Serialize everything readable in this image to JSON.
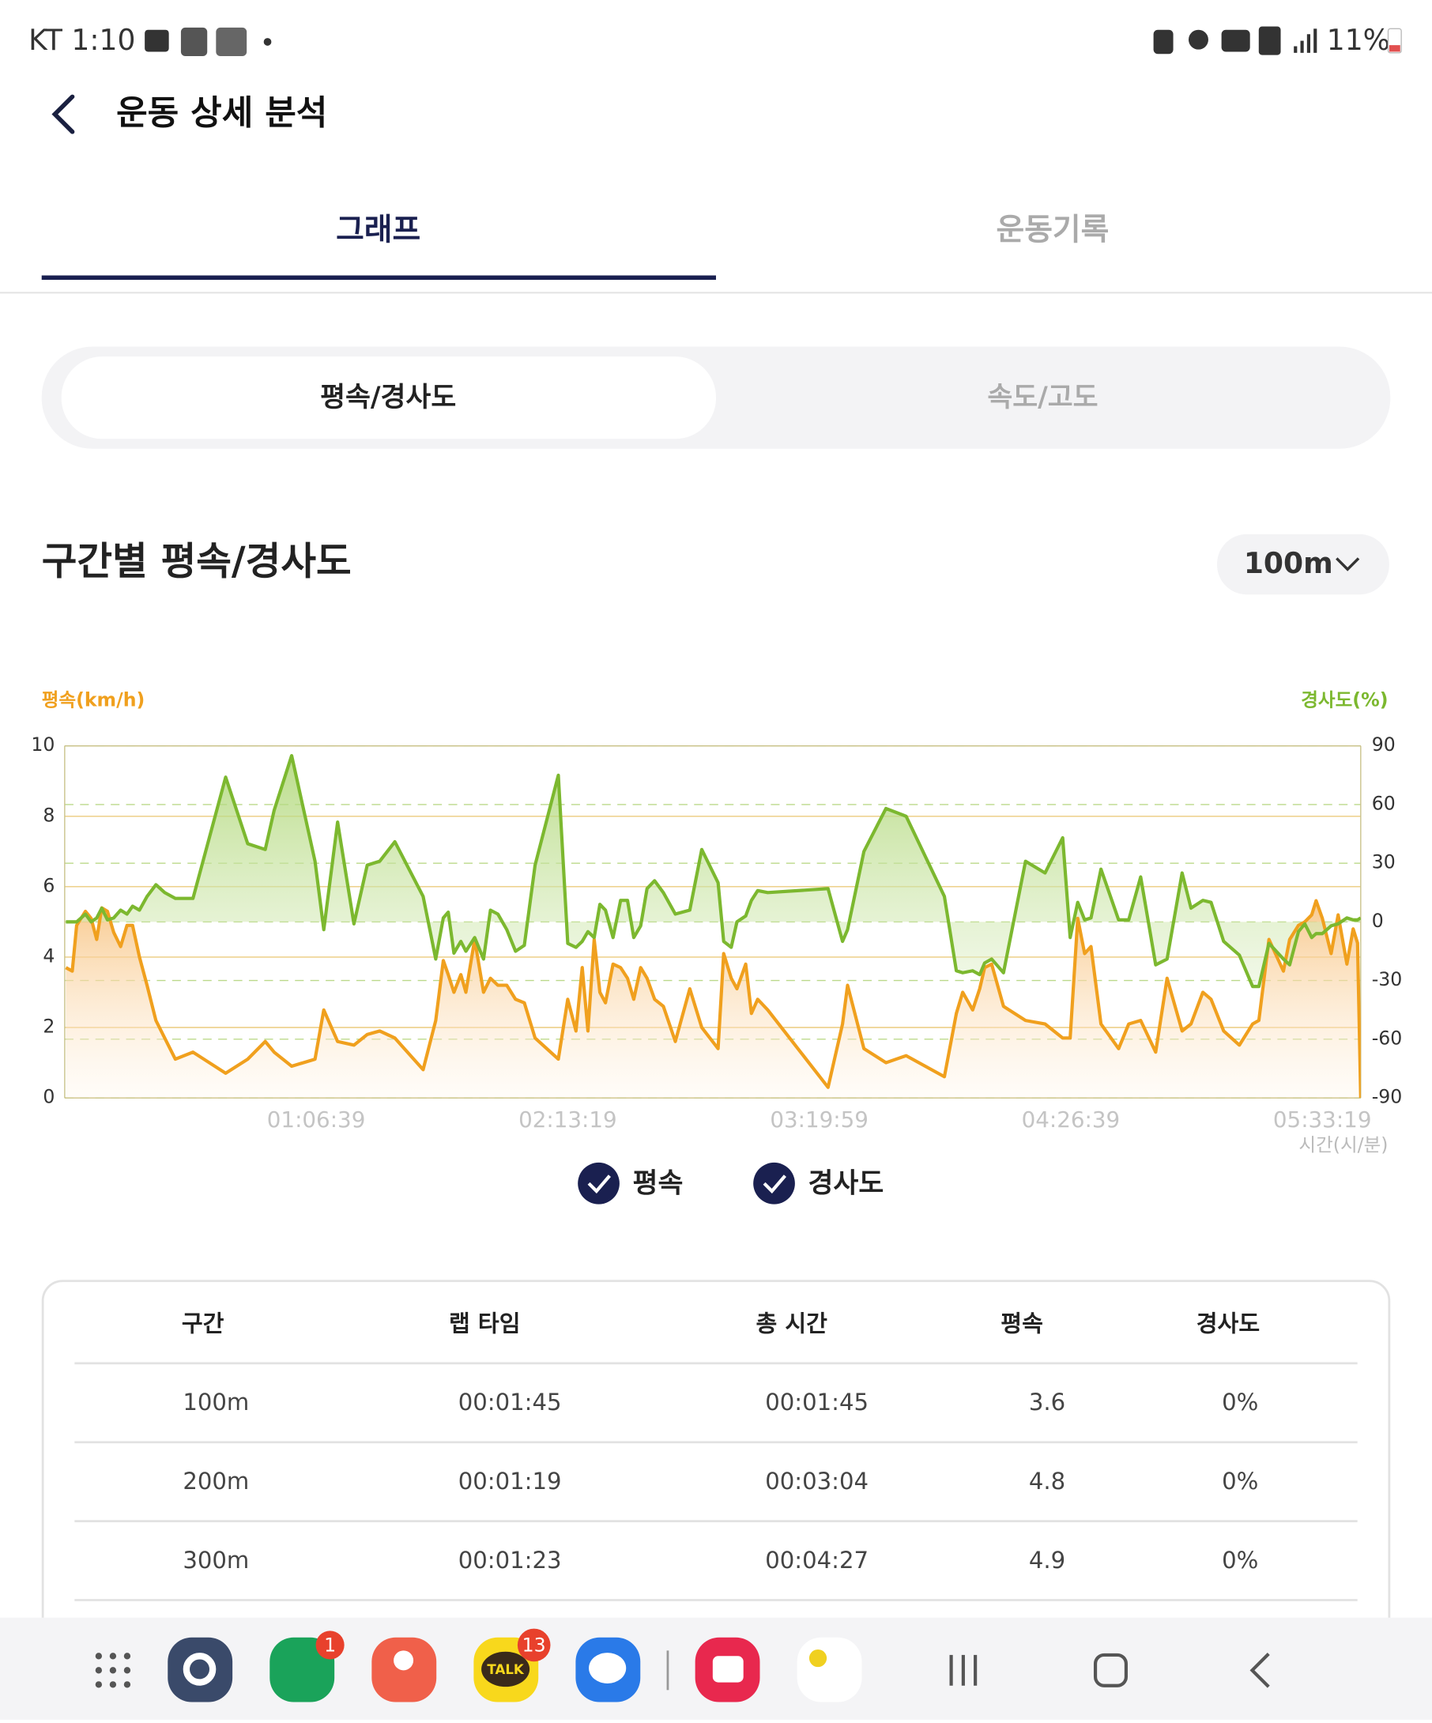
{
  "status_bar": {
    "carrier_time": "KT 1:10",
    "battery": "11%"
  },
  "header": {
    "title": "운동 상세 분석"
  },
  "tabs": [
    "그래프",
    "운동기록"
  ],
  "sub_tabs": [
    "평속/경사도",
    "속도/고도"
  ],
  "section": {
    "title": "구간별 평속/경사도",
    "interval": "100m"
  },
  "chart_data": {
    "type": "line",
    "area": true,
    "y_label": "평속(km/h)",
    "y2_label": "경사도(%)",
    "x_label": "시간(시/분)",
    "x": [
      20,
      120,
      190,
      330,
      420,
      510,
      590,
      680,
      780,
      890,
      990,
      1080,
      1190,
      1310,
      1450,
      1590,
      1760,
      2040,
      2560,
      2910,
      3190,
      3330,
      3610,
      3980,
      4120,
      4340,
      4600,
      4810,
      5010,
      5250,
      5700,
      5900,
      6020,
      6100,
      6190,
      6300,
      6380,
      6520,
      6660,
      6770,
      6890,
      7030,
      7170,
      7310,
      7480,
      7850,
      8000,
      8130,
      8230,
      8320,
      8420,
      8510,
      8600,
      8720,
      8840,
      8950,
      9050,
      9160,
      9260,
      9380,
      9520,
      9710,
      9940,
      10130,
      10390,
      10480,
      10600,
      10690,
      10830,
      10920,
      11020,
      11180,
      12140,
      12370,
      12450,
      12710,
      13060,
      13380,
      13990,
      14180,
      14280,
      14440,
      14550,
      14630,
      14740,
      14930,
      15280,
      15590,
      15870,
      15990,
      16110,
      16220,
      16320,
      16480,
      16760,
      16920,
      17110,
      17350,
      17530,
      17770,
      17910,
      18100,
      18230,
      18430,
      18680,
      18890,
      18990,
      19150,
      19380,
      19480,
      19620,
      19720,
      19830,
      19900,
      20000,
      20140,
      20250,
      20390,
      20490,
      20560,
      20610
    ],
    "xlim": [
      0,
      20610
    ],
    "xticks": [
      {
        "value": 3999,
        "label": "01:06:39"
      },
      {
        "value": 7999,
        "label": "02:13:19"
      },
      {
        "value": 11999,
        "label": "03:19:59"
      },
      {
        "value": 15999,
        "label": "04:26:39"
      },
      {
        "value": 19999,
        "label": "05:33:19"
      }
    ],
    "ylim": [
      0,
      10
    ],
    "yticks": [
      0,
      2,
      4,
      6,
      8,
      10
    ],
    "y2lim": [
      -90,
      90
    ],
    "y2ticks": [
      -90,
      -60,
      -30,
      0,
      30,
      60,
      90
    ],
    "series": [
      {
        "name": "평속",
        "color": "#f0a01e",
        "values": [
          3.7,
          3.6,
          4.9,
          5.3,
          5.1,
          4.5,
          5.4,
          5.3,
          4.7,
          4.3,
          4.9,
          4.9,
          4.0,
          3.2,
          2.2,
          1.7,
          1.1,
          1.3,
          0.7,
          1.1,
          1.6,
          1.3,
          0.9,
          1.1,
          2.5,
          1.6,
          1.5,
          1.8,
          1.9,
          1.7,
          0.8,
          2.2,
          3.9,
          3.5,
          3.0,
          3.5,
          3.0,
          4.5,
          3.0,
          3.4,
          3.2,
          3.2,
          2.8,
          2.7,
          1.7,
          1.1,
          2.8,
          1.9,
          3.7,
          1.9,
          4.5,
          3.0,
          2.7,
          3.8,
          3.7,
          3.4,
          2.8,
          3.7,
          3.4,
          2.8,
          2.6,
          1.6,
          3.1,
          2.0,
          1.4,
          4.1,
          3.4,
          3.1,
          3.8,
          2.4,
          2.8,
          2.5,
          0.3,
          2.1,
          3.2,
          1.4,
          1.0,
          1.2,
          0.6,
          2.4,
          3.0,
          2.5,
          3.1,
          3.7,
          3.8,
          2.6,
          2.2,
          2.1,
          1.7,
          1.7,
          5.1,
          4.1,
          4.3,
          2.1,
          1.4,
          2.1,
          2.2,
          1.3,
          3.4,
          1.9,
          2.1,
          3.0,
          2.8,
          1.9,
          1.5,
          2.1,
          2.2,
          4.5,
          3.6,
          4.5,
          4.9,
          5.0,
          5.2,
          5.6,
          5.1,
          4.1,
          5.2,
          3.8,
          4.8,
          4.4,
          0.0
        ]
      },
      {
        "name": "경사도",
        "color": "#7cb82f",
        "axis": "y2",
        "values": [
          0,
          0,
          0,
          4,
          0,
          2,
          7,
          1,
          2,
          6,
          4,
          8,
          6,
          13,
          19,
          15,
          12,
          12,
          74,
          40,
          37,
          57,
          85,
          31,
          -4,
          51,
          -1,
          29,
          31,
          41,
          13,
          -19,
          2,
          5,
          -16,
          -10,
          -15,
          -8,
          -19,
          6,
          4,
          -4,
          -15,
          -12,
          29,
          75,
          -11,
          -13,
          -10,
          -5,
          -8,
          9,
          6,
          -8,
          11,
          11,
          -8,
          -2,
          17,
          21,
          15,
          4,
          6,
          37,
          20,
          -10,
          -13,
          0,
          3,
          11,
          16,
          15,
          17,
          -10,
          -4,
          36,
          58,
          54,
          13,
          -25,
          -26,
          -25,
          -27,
          -21,
          -19,
          -26,
          31,
          25,
          43,
          -8,
          10,
          1,
          2,
          27,
          1,
          1,
          23,
          -22,
          -19,
          25,
          7,
          11,
          10,
          -10,
          -17,
          -33,
          -33,
          -11,
          -19,
          -22,
          -5,
          -1,
          -8,
          -6,
          -6,
          -2,
          -1,
          2,
          1,
          1,
          2
        ]
      }
    ],
    "grid": true
  },
  "table": {
    "header": [
      "구간",
      "랩 타임",
      "총 시간",
      "평속",
      "경사도"
    ],
    "rows": [
      [
        "100m",
        "00:01:45",
        "00:01:45",
        "3.6",
        "0%"
      ],
      [
        "200m",
        "00:01:19",
        "00:03:04",
        "4.8",
        "0%"
      ],
      [
        "300m",
        "00:01:23",
        "00:04:27",
        "4.9",
        "0%"
      ]
    ]
  },
  "dock": {
    "phone_badge": "1",
    "talk_label": "TALK",
    "talk_badge": "13"
  }
}
